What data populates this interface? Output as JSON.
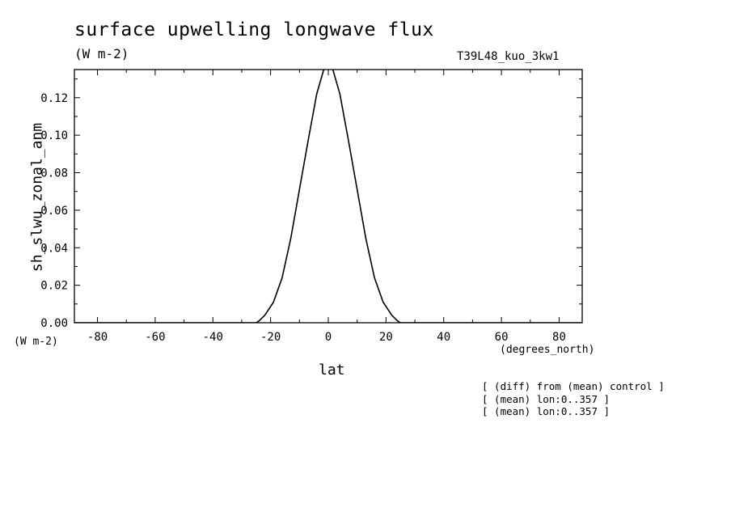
{
  "chart_data": {
    "type": "line",
    "title": "surface upwelling longwave flux",
    "units": "(W m-2)",
    "run_label": "T39L48_kuo_3kw1",
    "xlabel": "lat",
    "xunits": "(degrees_north)",
    "ylabel": "sh_slwu_zonal_anm",
    "yunits": "(W m-2)",
    "xlim": [
      -88,
      88
    ],
    "ylim": [
      0,
      0.135
    ],
    "xticks": [
      -80,
      -60,
      -40,
      -20,
      0,
      20,
      40,
      60,
      80
    ],
    "xtick_labels": [
      "-80",
      "-60",
      "-40",
      "-20",
      "0",
      "20",
      "40",
      "60",
      "80"
    ],
    "yticks": [
      0,
      0.02,
      0.04,
      0.06,
      0.08,
      0.1,
      0.12
    ],
    "ytick_labels": [
      "0.00",
      "0.02",
      "0.04",
      "0.06",
      "0.08",
      "0.10",
      "0.12"
    ],
    "grid": false,
    "series": [
      {
        "x": [
          -88,
          -25,
          -24,
          -22,
          -19,
          -16,
          -13,
          -10,
          -7,
          -4,
          -1,
          1,
          4,
          7,
          10,
          13,
          16,
          19,
          22,
          24,
          25,
          88
        ],
        "y": [
          0,
          0,
          0.001,
          0.004,
          0.011,
          0.024,
          0.045,
          0.071,
          0.097,
          0.122,
          0.138,
          0.138,
          0.122,
          0.097,
          0.071,
          0.045,
          0.024,
          0.011,
          0.004,
          0.001,
          0,
          0
        ]
      }
    ]
  },
  "notes": [
    "[ (diff) from (mean) control ]",
    "[ (mean) lon:0..357 ]",
    "[ (mean) lon:0..357 ]"
  ]
}
